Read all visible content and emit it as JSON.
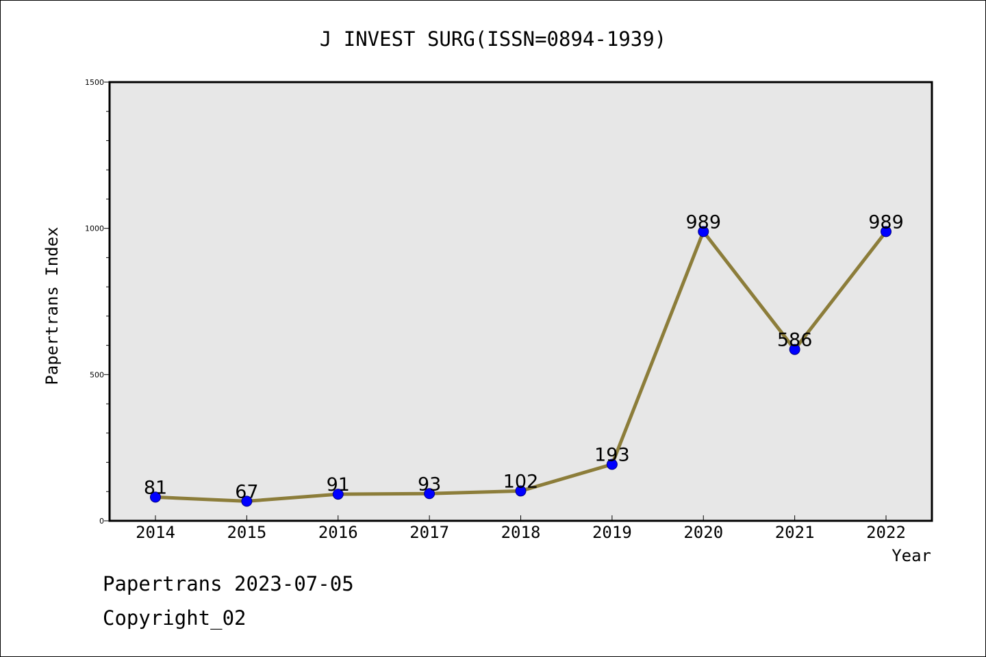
{
  "chart_data": {
    "type": "line",
    "title": "J INVEST SURG(ISSN=0894-1939)",
    "xlabel": "Year",
    "ylabel": "Papertrans Index",
    "categories": [
      "2014",
      "2015",
      "2016",
      "2017",
      "2018",
      "2019",
      "2020",
      "2021",
      "2022"
    ],
    "values": [
      81,
      67,
      91,
      93,
      102,
      193,
      989,
      586,
      989
    ],
    "data_labels": [
      "81",
      "67",
      "91",
      "93",
      "102",
      "193",
      "989",
      "586",
      "989"
    ],
    "ylim": [
      0,
      1500
    ],
    "y_ticks": [
      0,
      500,
      1000,
      1500
    ],
    "y_tick_labels": [
      "0",
      "500",
      "1000",
      "1500"
    ],
    "grid": false,
    "colors": {
      "line": "#8c7d3a",
      "marker_fill": "#0000ff",
      "marker_stroke": "#000080",
      "plot_background": "#e7e7e7"
    }
  },
  "footer": {
    "date_text": "Papertrans 2023-07-05",
    "copyright_text": "Copyright_02"
  }
}
